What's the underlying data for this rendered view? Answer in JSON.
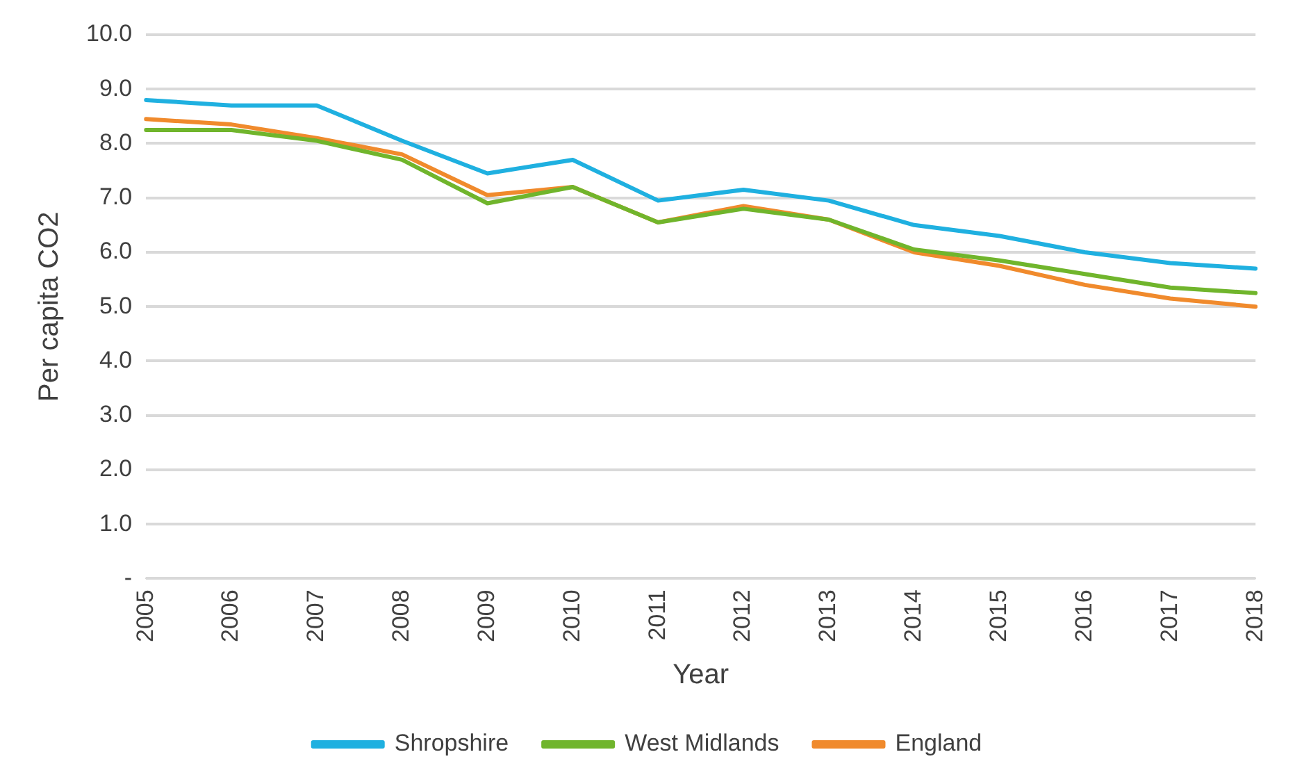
{
  "chart_data": {
    "type": "line",
    "xlabel": "Year",
    "ylabel": "Per capita CO2",
    "categories": [
      "2005",
      "2006",
      "2007",
      "2008",
      "2009",
      "2010",
      "2011",
      "2012",
      "2013",
      "2014",
      "2015",
      "2016",
      "2017",
      "2018"
    ],
    "series": [
      {
        "name": "Shropshire",
        "color": "#1fb0e0",
        "values": [
          8.8,
          8.7,
          8.7,
          8.05,
          7.45,
          7.7,
          6.95,
          7.15,
          6.95,
          6.5,
          6.3,
          6.0,
          5.8,
          5.7
        ]
      },
      {
        "name": "West Midlands",
        "color": "#70b52c",
        "values": [
          8.25,
          8.25,
          8.05,
          7.7,
          6.9,
          7.2,
          6.55,
          6.8,
          6.6,
          6.05,
          5.85,
          5.6,
          5.35,
          5.25
        ]
      },
      {
        "name": "England",
        "color": "#f08a2c",
        "values": [
          8.45,
          8.35,
          8.1,
          7.8,
          7.05,
          7.2,
          6.55,
          6.85,
          6.6,
          6.0,
          5.75,
          5.4,
          5.15,
          5.0
        ]
      }
    ],
    "ylim": [
      0,
      10
    ],
    "yticks": [
      {
        "value": 0,
        "label": "-"
      },
      {
        "value": 1,
        "label": "1.0"
      },
      {
        "value": 2,
        "label": "2.0"
      },
      {
        "value": 3,
        "label": "3.0"
      },
      {
        "value": 4,
        "label": "4.0"
      },
      {
        "value": 5,
        "label": "5.0"
      },
      {
        "value": 6,
        "label": "6.0"
      },
      {
        "value": 7,
        "label": "7.0"
      },
      {
        "value": 8,
        "label": "8.0"
      },
      {
        "value": 9,
        "label": "9.0"
      },
      {
        "value": 10,
        "label": "10.0"
      }
    ],
    "grid": "y",
    "legend": "bottom",
    "marker": "none",
    "line_style": "solid"
  }
}
